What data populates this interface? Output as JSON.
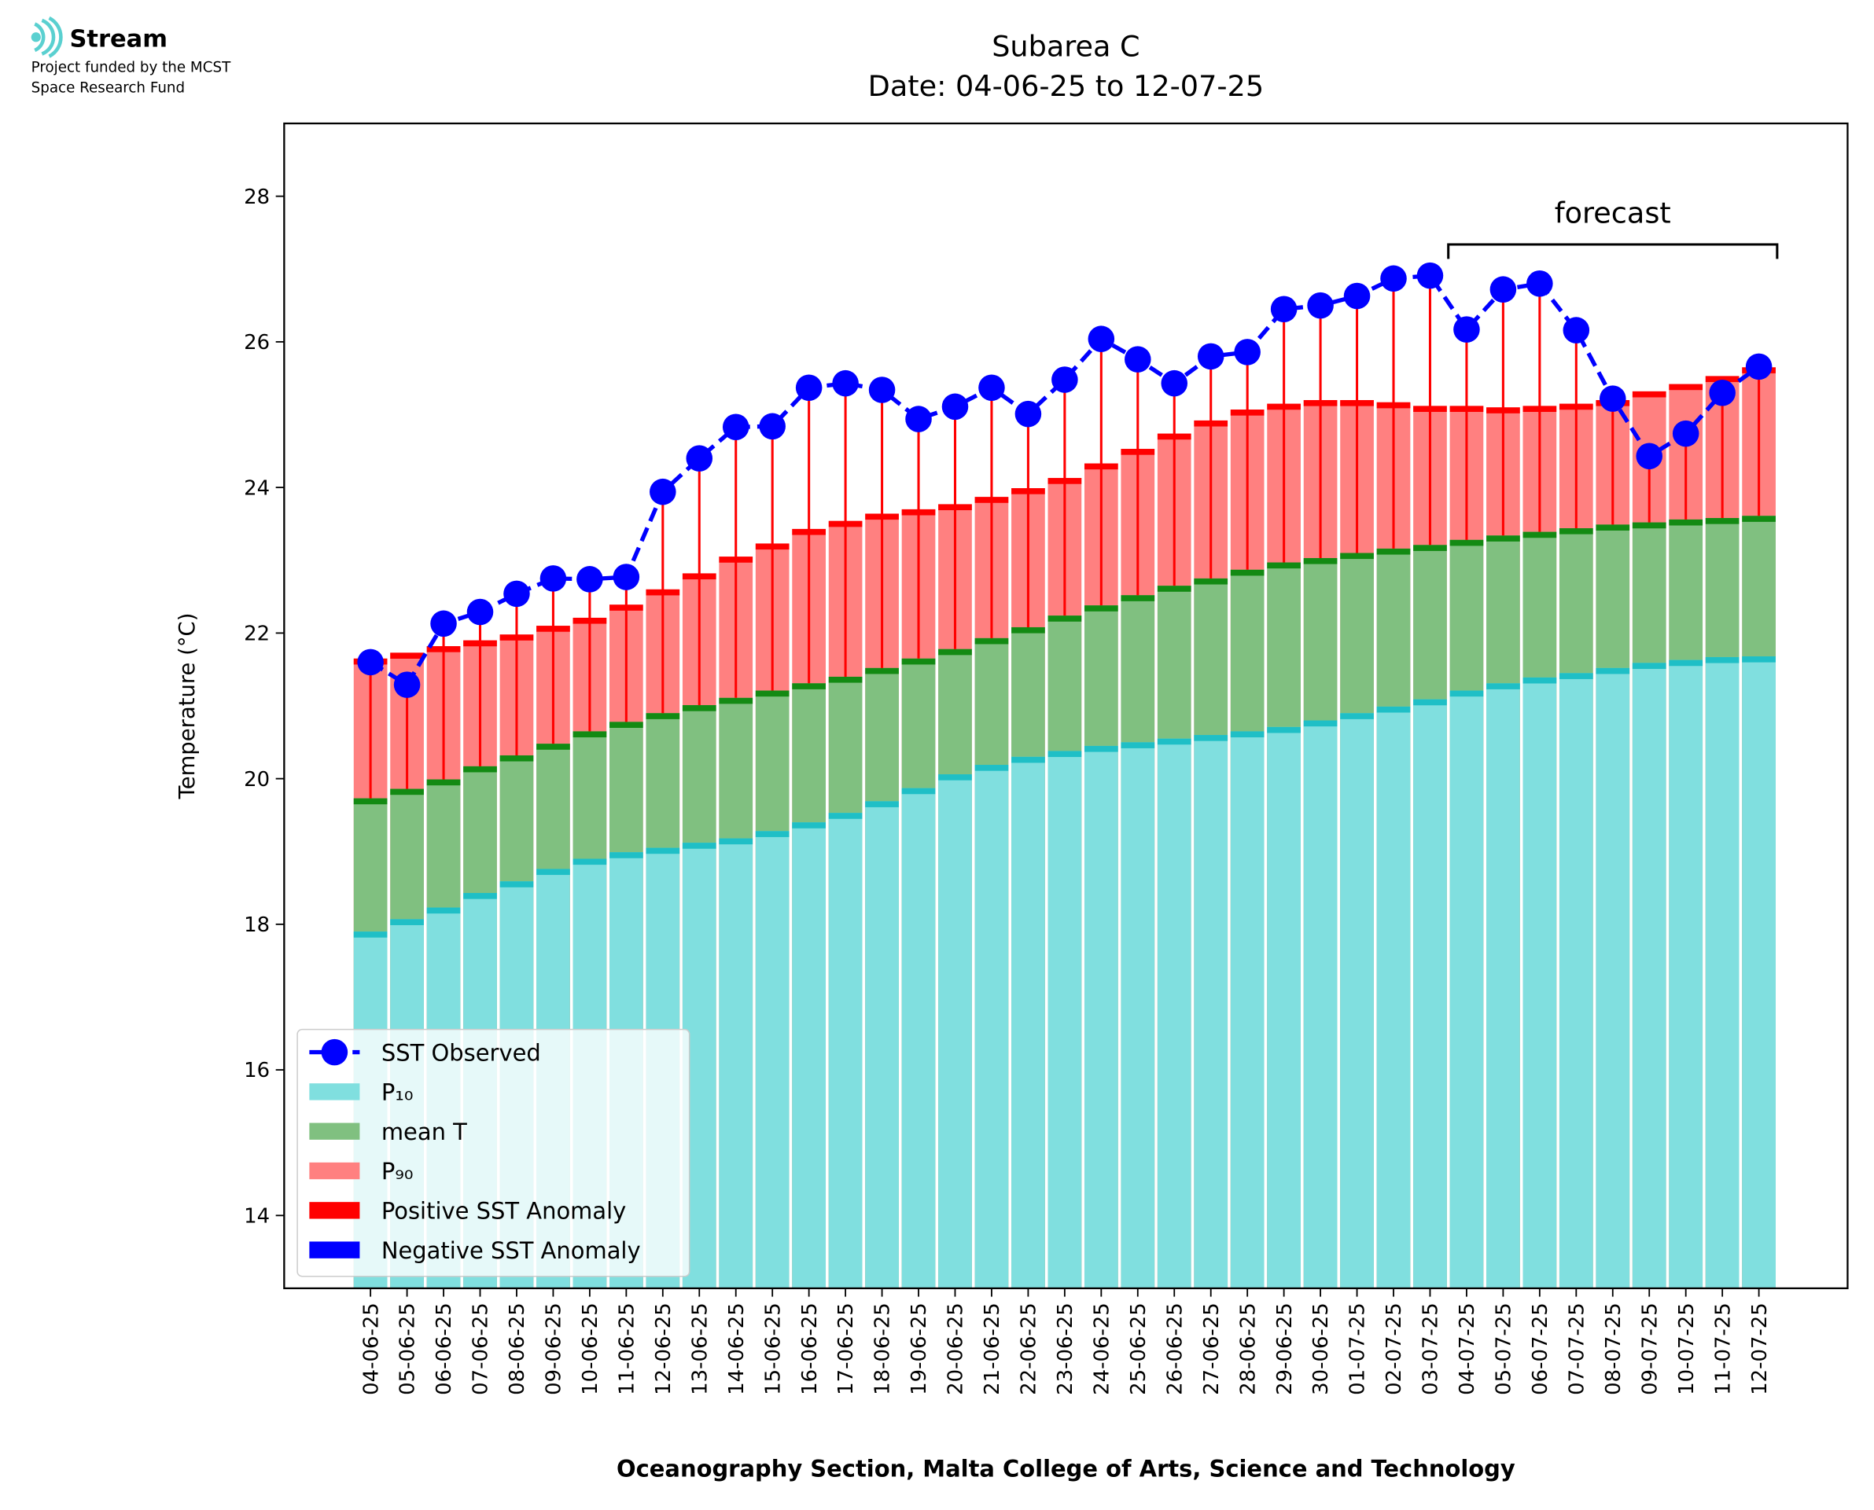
{
  "header": {
    "logo": "Stream",
    "line1": "Project funded by the MCST",
    "line2": "Space Research Fund"
  },
  "chart_data": {
    "type": "bar",
    "title": "Subarea C",
    "subtitle": "Date: 04-06-25 to 12-07-25",
    "xlabel": "Oceanography Section, Malta College of Arts, Science and Technology",
    "ylabel": "Temperature (°C)",
    "categories": [
      "04-06-25",
      "05-06-25",
      "06-06-25",
      "07-06-25",
      "08-06-25",
      "09-06-25",
      "10-06-25",
      "11-06-25",
      "12-06-25",
      "13-06-25",
      "14-06-25",
      "15-06-25",
      "16-06-25",
      "17-06-25",
      "18-06-25",
      "19-06-25",
      "20-06-25",
      "21-06-25",
      "22-06-25",
      "23-06-25",
      "24-06-25",
      "25-06-25",
      "26-06-25",
      "27-06-25",
      "28-06-25",
      "29-06-25",
      "30-06-25",
      "01-07-25",
      "02-07-25",
      "03-07-25",
      "04-07-25",
      "05-07-25",
      "06-07-25",
      "07-07-25",
      "08-07-25",
      "09-07-25",
      "10-07-25",
      "11-07-25",
      "12-07-25"
    ],
    "series": [
      {
        "name": "P₉₀",
        "type": "bar",
        "color": "#ff8080",
        "edge": "#ff0000",
        "values": [
          21.65,
          21.73,
          21.82,
          21.9,
          21.98,
          22.1,
          22.21,
          22.39,
          22.6,
          22.82,
          23.05,
          23.23,
          23.43,
          23.54,
          23.64,
          23.7,
          23.77,
          23.87,
          23.99,
          24.13,
          24.33,
          24.53,
          24.74,
          24.92,
          25.07,
          25.15,
          25.2,
          25.2,
          25.17,
          25.12,
          25.12,
          25.1,
          25.12,
          25.15,
          25.2,
          25.32,
          25.42,
          25.53,
          25.65
        ]
      },
      {
        "name": "mean T",
        "type": "bar",
        "color": "#80c080",
        "edge": "#138a13",
        "values": [
          19.73,
          19.86,
          19.99,
          20.17,
          20.32,
          20.48,
          20.65,
          20.78,
          20.9,
          21.01,
          21.11,
          21.21,
          21.31,
          21.4,
          21.52,
          21.65,
          21.78,
          21.93,
          22.08,
          22.24,
          22.38,
          22.52,
          22.65,
          22.75,
          22.87,
          22.97,
          23.03,
          23.1,
          23.16,
          23.21,
          23.28,
          23.34,
          23.39,
          23.44,
          23.49,
          23.52,
          23.56,
          23.58,
          23.61
        ]
      },
      {
        "name": "P₁₀",
        "type": "bar",
        "color": "#80dfdf",
        "edge": "#1fbfc6",
        "values": [
          17.9,
          18.07,
          18.23,
          18.43,
          18.59,
          18.76,
          18.9,
          18.99,
          19.05,
          19.12,
          19.18,
          19.28,
          19.4,
          19.53,
          19.69,
          19.87,
          20.06,
          20.19,
          20.3,
          20.38,
          20.45,
          20.5,
          20.55,
          20.6,
          20.65,
          20.71,
          20.8,
          20.9,
          20.99,
          21.09,
          21.21,
          21.31,
          21.39,
          21.45,
          21.52,
          21.59,
          21.63,
          21.67,
          21.68
        ]
      },
      {
        "name": "SST Observed",
        "type": "line",
        "color": "#0000ff",
        "values": [
          21.6,
          21.29,
          22.13,
          22.29,
          22.54,
          22.75,
          22.74,
          22.77,
          23.94,
          24.4,
          24.83,
          24.84,
          25.37,
          25.43,
          25.34,
          24.94,
          25.11,
          25.37,
          25.01,
          25.48,
          26.04,
          25.76,
          25.43,
          25.8,
          25.86,
          26.45,
          26.5,
          26.63,
          26.87,
          26.91,
          26.17,
          26.72,
          26.8,
          26.16,
          25.22,
          24.43,
          24.74,
          25.3,
          25.66
        ]
      }
    ],
    "anomalies": [
      {
        "name": "Positive SST Anomaly",
        "color": "#ff0000"
      },
      {
        "name": "Negative SST Anomaly",
        "color": "#0000ff"
      }
    ],
    "annotations": [
      {
        "text": "forecast",
        "from": "04-07-25",
        "to": "12-07-25"
      }
    ],
    "ylim": [
      13,
      29
    ],
    "yticks": [
      14,
      16,
      18,
      20,
      22,
      24,
      26,
      28
    ],
    "legend": "lower left"
  }
}
